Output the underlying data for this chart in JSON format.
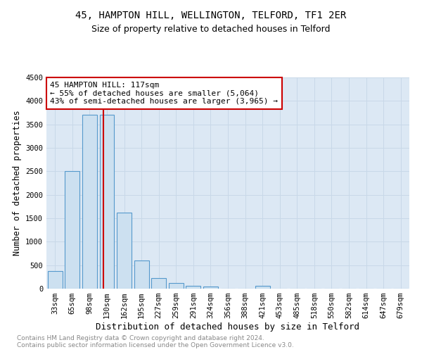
{
  "title": "45, HAMPTON HILL, WELLINGTON, TELFORD, TF1 2ER",
  "subtitle": "Size of property relative to detached houses in Telford",
  "xlabel": "Distribution of detached houses by size in Telford",
  "ylabel": "Number of detached properties",
  "categories": [
    "33sqm",
    "65sqm",
    "98sqm",
    "130sqm",
    "162sqm",
    "195sqm",
    "227sqm",
    "259sqm",
    "291sqm",
    "324sqm",
    "356sqm",
    "388sqm",
    "421sqm",
    "453sqm",
    "485sqm",
    "518sqm",
    "550sqm",
    "582sqm",
    "614sqm",
    "647sqm",
    "679sqm"
  ],
  "values": [
    380,
    2500,
    3700,
    3700,
    1625,
    600,
    230,
    115,
    65,
    50,
    0,
    0,
    60,
    0,
    0,
    0,
    0,
    0,
    0,
    0,
    0
  ],
  "bar_color": "#cce0f0",
  "bar_edge_color": "#5599cc",
  "bar_linewidth": 0.8,
  "vline_x": 2.78,
  "vline_color": "#cc0000",
  "annotation_line1": "45 HAMPTON HILL: 117sqm",
  "annotation_line2": "← 55% of detached houses are smaller (5,064)",
  "annotation_line3": "43% of semi-detached houses are larger (3,965) →",
  "annotation_box_color": "#cc0000",
  "ylim": [
    0,
    4500
  ],
  "yticks": [
    0,
    500,
    1000,
    1500,
    2000,
    2500,
    3000,
    3500,
    4000,
    4500
  ],
  "grid_color": "#c8d8e8",
  "background_color": "#dce8f4",
  "footnote": "Contains HM Land Registry data © Crown copyright and database right 2024.\nContains public sector information licensed under the Open Government Licence v3.0.",
  "title_fontsize": 10,
  "subtitle_fontsize": 9,
  "xlabel_fontsize": 9,
  "ylabel_fontsize": 8.5,
  "tick_fontsize": 7.5,
  "annotation_fontsize": 8,
  "footnote_fontsize": 6.5,
  "footnote_color": "#888888"
}
